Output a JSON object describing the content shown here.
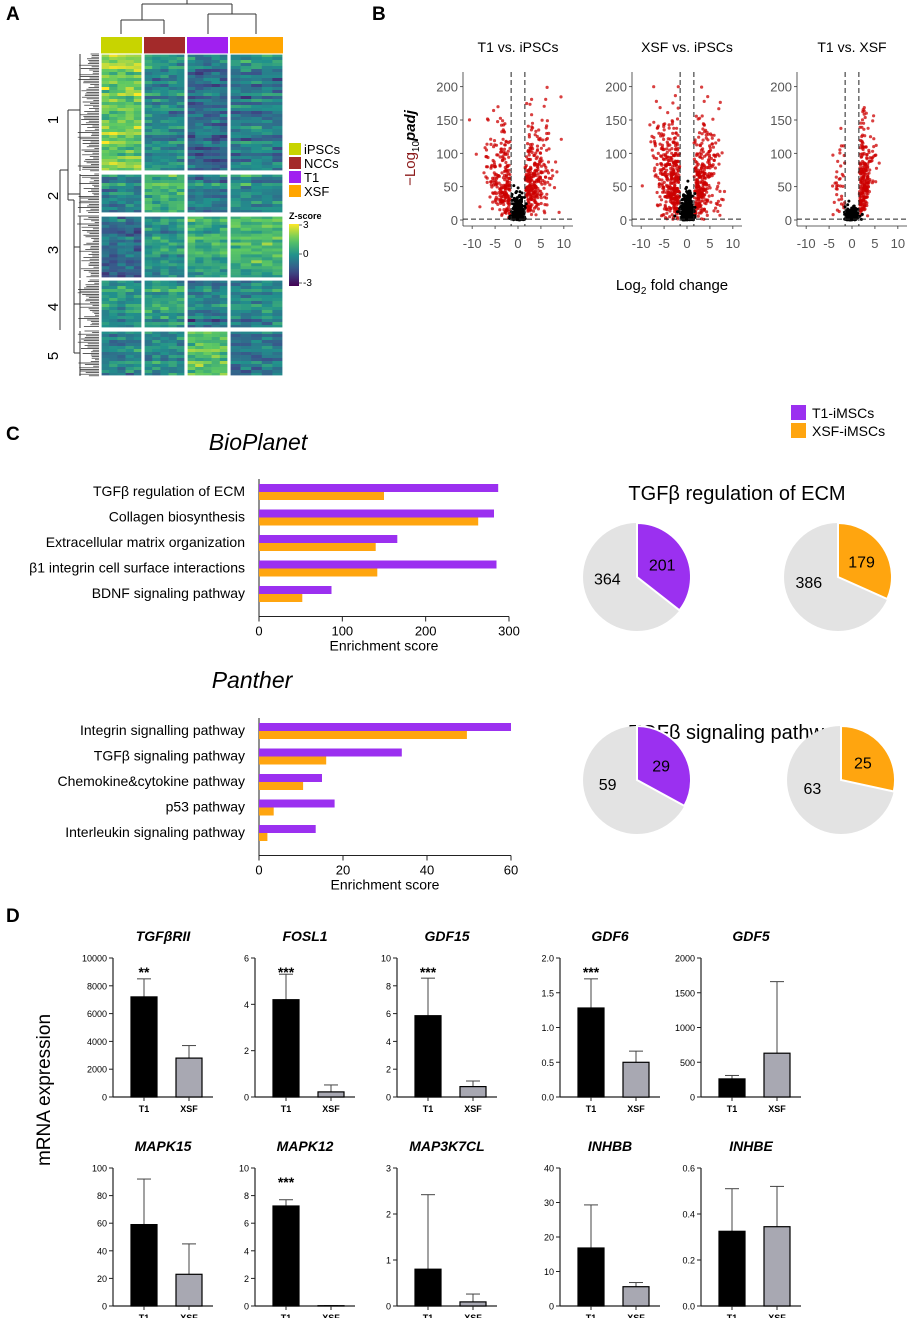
{
  "panels": {
    "a": "A",
    "b": "B",
    "c": "C",
    "d": "D"
  },
  "heatmap": {
    "groups": [
      "iPSCs",
      "NCCs",
      "T1",
      "XSF"
    ],
    "group_colors": [
      "#c8d400",
      "#a32a2a",
      "#a020f0",
      "#ffa500"
    ],
    "clusters": [
      "1",
      "2",
      "3",
      "4",
      "5"
    ],
    "scale_title": "Z-score",
    "scale_ticks": [
      "3",
      "0",
      "-3"
    ],
    "scale_range": [
      -3,
      3
    ],
    "cluster_means": [
      [
        1.6,
        -0.2,
        -0.9,
        -0.4
      ],
      [
        -0.3,
        0.9,
        -0.5,
        -0.2
      ],
      [
        -1.1,
        0.0,
        0.6,
        0.9
      ],
      [
        0.2,
        0.4,
        -0.4,
        -0.1
      ],
      [
        -0.2,
        -0.1,
        1.4,
        -0.6
      ]
    ]
  },
  "volcano": {
    "titles": [
      "T1 vs. iPSCs",
      "XSF vs. iPSCs",
      "T1 vs. XSF"
    ],
    "y_label_prefix": "−Log",
    "y_label_sub": "10",
    "y_label_var": "padj",
    "x_label_prefix": "Log",
    "x_label_sub": "2",
    "x_label_suffix": " fold change",
    "x_ticks": [
      "-10",
      "-5",
      "0",
      "5",
      "10"
    ],
    "y_ticks": [
      "0",
      "50",
      "100",
      "150",
      "200"
    ],
    "xlim": [
      -12,
      12
    ],
    "ylim": [
      0,
      210
    ],
    "fc_threshold": 1.5,
    "padj_threshold": 1.3,
    "point_color_sig": "#cc0000",
    "point_color_ns": "#000000"
  },
  "enrichment": {
    "legend": [
      {
        "label": "T1-iMSCs",
        "color": "#9b30f0"
      },
      {
        "label": "XSF-iMSCs",
        "color": "#ffa50f"
      }
    ],
    "xlabel": "Enrichment score",
    "bioplanet": {
      "title": "BioPlanet",
      "terms": [
        "TGFβ regulation of ECM",
        "Collagen biosynthesis",
        "Extracellular matrix organization",
        "β1 integrin cell surface interactions",
        "BDNF signaling pathway"
      ],
      "t1": [
        287,
        282,
        166,
        285,
        87
      ],
      "xsf": [
        150,
        263,
        140,
        142,
        52
      ],
      "xlim": [
        0,
        300
      ],
      "ticks": [
        "0",
        "100",
        "200",
        "300"
      ]
    },
    "panther": {
      "title": "Panther",
      "terms": [
        "Integrin signalling pathway",
        "TGFβ signaling pathway",
        "Chemokine&cytokine pathway",
        "p53 pathway",
        "Interleukin signaling pathway"
      ],
      "t1": [
        60,
        34,
        15,
        18,
        13.5
      ],
      "xsf": [
        49.5,
        16,
        10.5,
        3.5,
        2
      ],
      "xlim": [
        0,
        60
      ],
      "ticks": [
        "0",
        "20",
        "40",
        "60"
      ]
    }
  },
  "pies": {
    "rest_color": "#e3e3e3",
    "top": {
      "title": "TGFβ  regulation of ECM",
      "t1": {
        "hit": "201",
        "rest": "364"
      },
      "xsf": {
        "hit": "179",
        "rest": "386"
      }
    },
    "bottom": {
      "title": "TGFβ  signaling pathway",
      "t1": {
        "hit": "29",
        "rest": "59"
      },
      "xsf": {
        "hit": "25",
        "rest": "63"
      }
    }
  },
  "chart_data": {
    "type": "bar",
    "ylabel": "mRNA expression",
    "categories": [
      "T1",
      "XSF"
    ],
    "bar_colors": [
      "#000000",
      "#a8a8b2"
    ],
    "genes": [
      {
        "name": "TGFβRII",
        "t1": 7200,
        "t1_err": 1300,
        "xsf": 2800,
        "xsf_err": 900,
        "ylim": [
          0,
          10000
        ],
        "ticks": [
          "0",
          "2000",
          "4000",
          "6000",
          "8000",
          "10000"
        ],
        "sig": "**"
      },
      {
        "name": "FOSL1",
        "t1": 4.2,
        "t1_err": 1.1,
        "xsf": 0.22,
        "xsf_err": 0.3,
        "ylim": [
          0,
          6
        ],
        "ticks": [
          "0",
          "2",
          "4",
          "6"
        ],
        "sig": "***"
      },
      {
        "name": "GDF15",
        "t1": 5.85,
        "t1_err": 2.7,
        "xsf": 0.75,
        "xsf_err": 0.4,
        "ylim": [
          0,
          10
        ],
        "ticks": [
          "0",
          "2",
          "4",
          "6",
          "8",
          "10"
        ],
        "sig": "***"
      },
      {
        "name": "GDF6",
        "t1": 1.28,
        "t1_err": 0.42,
        "xsf": 0.5,
        "xsf_err": 0.16,
        "ylim": [
          0,
          2
        ],
        "ticks": [
          "0.0",
          "0.5",
          "1.0",
          "1.5",
          "2.0"
        ],
        "sig": "***"
      },
      {
        "name": "GDF5",
        "t1": 260,
        "t1_err": 50,
        "xsf": 630,
        "xsf_err": 1030,
        "ylim": [
          0,
          2000
        ],
        "ticks": [
          "0",
          "500",
          "1000",
          "1500",
          "2000"
        ],
        "sig": ""
      },
      {
        "name": "MAPK15",
        "t1": 59,
        "t1_err": 33,
        "xsf": 23,
        "xsf_err": 22,
        "ylim": [
          0,
          100
        ],
        "ticks": [
          "0",
          "20",
          "40",
          "60",
          "80",
          "100"
        ],
        "sig": ""
      },
      {
        "name": "MAPK12",
        "t1": 7.25,
        "t1_err": 0.45,
        "xsf": 0.02,
        "xsf_err": 0.0,
        "ylim": [
          0,
          10
        ],
        "ticks": [
          "0",
          "2",
          "4",
          "6",
          "8",
          "10"
        ],
        "sig": "***"
      },
      {
        "name": "MAP3K7CL",
        "t1": 0.8,
        "t1_err": 1.62,
        "xsf": 0.09,
        "xsf_err": 0.17,
        "ylim": [
          0,
          3
        ],
        "ticks": [
          "0",
          "1",
          "2",
          "3"
        ],
        "sig": ""
      },
      {
        "name": "INHBB",
        "t1": 16.8,
        "t1_err": 12.5,
        "xsf": 5.6,
        "xsf_err": 1.2,
        "ylim": [
          0,
          40
        ],
        "ticks": [
          "0",
          "10",
          "20",
          "30",
          "40"
        ],
        "sig": ""
      },
      {
        "name": "INHBE",
        "t1": 0.325,
        "t1_err": 0.185,
        "xsf": 0.345,
        "xsf_err": 0.175,
        "ylim": [
          0,
          0.6
        ],
        "ticks": [
          "0.0",
          "0.2",
          "0.4",
          "0.6"
        ],
        "sig": ""
      }
    ]
  }
}
